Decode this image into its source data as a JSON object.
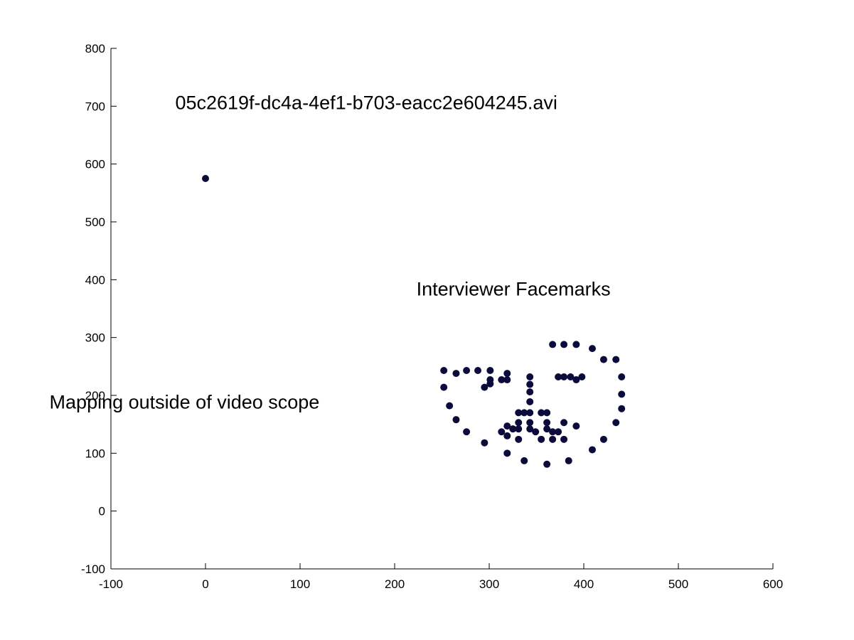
{
  "chart_data": {
    "type": "scatter",
    "title": "",
    "xlabel": "",
    "ylabel": "",
    "xlim": [
      -100,
      600
    ],
    "ylim": [
      -100,
      800
    ],
    "grid": false,
    "x_ticks": [
      -100,
      0,
      100,
      200,
      300,
      400,
      500,
      600
    ],
    "y_ticks": [
      -100,
      0,
      100,
      200,
      300,
      400,
      500,
      600,
      700,
      800
    ],
    "x_tick_labels": [
      "-100",
      "0",
      "100",
      "200",
      "300",
      "400",
      "500",
      "600"
    ],
    "y_tick_labels": [
      "-100",
      "0",
      "100",
      "200",
      "300",
      "400",
      "500",
      "600",
      "700",
      "800"
    ],
    "marker_color": "#0b0b3b",
    "annotations": [
      {
        "id": "filename",
        "text": "05c2619f-dc4a-4ef1-b703-eacc2e604245.avi",
        "x": -32,
        "y": 695
      },
      {
        "id": "interviewer",
        "text": "Interviewer Facemarks",
        "x": 223,
        "y": 373
      },
      {
        "id": "outside",
        "text": "Mapping outside of video scope",
        "x": -165,
        "y": 177
      }
    ],
    "series": [
      {
        "values": [
          {
            "x": 0,
            "y": 575
          },
          {
            "x": 252,
            "y": 243
          },
          {
            "x": 252,
            "y": 214
          },
          {
            "x": 258,
            "y": 182
          },
          {
            "x": 265,
            "y": 158
          },
          {
            "x": 276,
            "y": 137
          },
          {
            "x": 295,
            "y": 118
          },
          {
            "x": 319,
            "y": 100
          },
          {
            "x": 337,
            "y": 87
          },
          {
            "x": 361,
            "y": 81
          },
          {
            "x": 384,
            "y": 87
          },
          {
            "x": 409,
            "y": 106
          },
          {
            "x": 421,
            "y": 124
          },
          {
            "x": 434,
            "y": 153
          },
          {
            "x": 440,
            "y": 177
          },
          {
            "x": 440,
            "y": 202
          },
          {
            "x": 440,
            "y": 232
          },
          {
            "x": 265,
            "y": 238
          },
          {
            "x": 276,
            "y": 243
          },
          {
            "x": 288,
            "y": 243
          },
          {
            "x": 301,
            "y": 243
          },
          {
            "x": 319,
            "y": 238
          },
          {
            "x": 367,
            "y": 288
          },
          {
            "x": 379,
            "y": 288
          },
          {
            "x": 392,
            "y": 288
          },
          {
            "x": 409,
            "y": 281
          },
          {
            "x": 421,
            "y": 262
          },
          {
            "x": 434,
            "y": 262
          },
          {
            "x": 343,
            "y": 232
          },
          {
            "x": 343,
            "y": 219
          },
          {
            "x": 343,
            "y": 206
          },
          {
            "x": 343,
            "y": 189
          },
          {
            "x": 331,
            "y": 170
          },
          {
            "x": 337,
            "y": 170
          },
          {
            "x": 343,
            "y": 170
          },
          {
            "x": 355,
            "y": 170
          },
          {
            "x": 361,
            "y": 170
          },
          {
            "x": 295,
            "y": 214
          },
          {
            "x": 301,
            "y": 220
          },
          {
            "x": 301,
            "y": 227
          },
          {
            "x": 313,
            "y": 227
          },
          {
            "x": 319,
            "y": 227
          },
          {
            "x": 373,
            "y": 232
          },
          {
            "x": 379,
            "y": 232
          },
          {
            "x": 386,
            "y": 232
          },
          {
            "x": 392,
            "y": 227
          },
          {
            "x": 398,
            "y": 232
          },
          {
            "x": 313,
            "y": 137
          },
          {
            "x": 319,
            "y": 147
          },
          {
            "x": 325,
            "y": 142
          },
          {
            "x": 331,
            "y": 142
          },
          {
            "x": 331,
            "y": 153
          },
          {
            "x": 343,
            "y": 153
          },
          {
            "x": 361,
            "y": 153
          },
          {
            "x": 379,
            "y": 153
          },
          {
            "x": 392,
            "y": 147
          },
          {
            "x": 319,
            "y": 130
          },
          {
            "x": 331,
            "y": 124
          },
          {
            "x": 343,
            "y": 142
          },
          {
            "x": 349,
            "y": 137
          },
          {
            "x": 355,
            "y": 124
          },
          {
            "x": 361,
            "y": 142
          },
          {
            "x": 367,
            "y": 137
          },
          {
            "x": 367,
            "y": 124
          },
          {
            "x": 373,
            "y": 137
          },
          {
            "x": 379,
            "y": 124
          }
        ]
      }
    ]
  }
}
